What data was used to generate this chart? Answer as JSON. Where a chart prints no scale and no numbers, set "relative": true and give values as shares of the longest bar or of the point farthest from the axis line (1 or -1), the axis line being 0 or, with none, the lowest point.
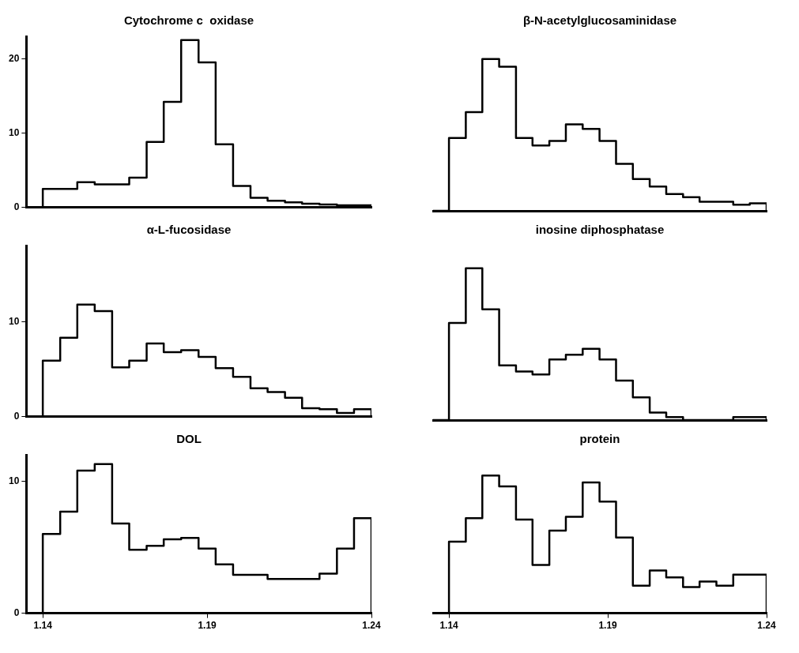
{
  "chart_data": [
    {
      "type": "step",
      "title": "Cytochrome c  oxidase",
      "color": "#000000",
      "x": [
        1.135,
        1.14,
        1.1453,
        1.1505,
        1.1558,
        1.1611,
        1.1663,
        1.1716,
        1.1768,
        1.1821,
        1.1874,
        1.1926,
        1.1979,
        1.2032,
        1.2084,
        1.2137,
        1.2189,
        1.2242,
        1.2295,
        1.2347,
        1.24
      ],
      "values": [
        0,
        2.5,
        2.5,
        3.4,
        3.1,
        3.1,
        4.0,
        8.8,
        14.2,
        22.5,
        19.5,
        8.5,
        2.9,
        1.3,
        0.9,
        0.7,
        0.5,
        0.4,
        0.3,
        0.3,
        0
      ],
      "xlim": [
        1.135,
        1.24
      ],
      "xticks": [
        1.14,
        1.19,
        1.24
      ],
      "ylim": [
        0,
        23
      ],
      "yticks": [
        0,
        10,
        20
      ],
      "tick_labels": "y"
    },
    {
      "type": "step",
      "title": "β-N-acetylglucosaminidase",
      "color": "#000000",
      "x": [
        1.135,
        1.14,
        1.1453,
        1.1505,
        1.1558,
        1.1611,
        1.1663,
        1.1716,
        1.1768,
        1.1821,
        1.1874,
        1.1926,
        1.1979,
        1.2032,
        1.2084,
        1.2137,
        1.2189,
        1.2242,
        1.2295,
        1.2347,
        1.24
      ],
      "values": [
        0,
        0.48,
        0.65,
        1,
        0.95,
        0.48,
        0.43,
        0.46,
        0.57,
        0.54,
        0.46,
        0.31,
        0.21,
        0.16,
        0.11,
        0.09,
        0.06,
        0.06,
        0.04,
        0.05,
        0
      ],
      "relative": true,
      "xlim": [
        1.135,
        1.24
      ],
      "xticks": [
        1.14,
        1.19,
        1.24
      ],
      "tick_labels": false
    },
    {
      "type": "step",
      "title": "α-L-fucosidase",
      "color": "#000000",
      "x": [
        1.135,
        1.14,
        1.1453,
        1.1505,
        1.1558,
        1.1611,
        1.1663,
        1.1716,
        1.1768,
        1.1821,
        1.1874,
        1.1926,
        1.1979,
        1.2032,
        1.2084,
        1.2137,
        1.2189,
        1.2242,
        1.2295,
        1.2347,
        1.24
      ],
      "values": [
        0,
        5.9,
        8.3,
        11.8,
        11.1,
        5.2,
        5.9,
        7.7,
        6.8,
        7.0,
        6.3,
        5.1,
        4.2,
        3.0,
        2.6,
        2.0,
        0.9,
        0.8,
        0.4,
        0.8,
        0
      ],
      "xlim": [
        1.135,
        1.24
      ],
      "xticks": [
        1.14,
        1.19,
        1.24
      ],
      "ylim": [
        0,
        18
      ],
      "yticks": [
        0,
        10
      ],
      "tick_labels": "y"
    },
    {
      "type": "step",
      "title": "inosine diphosphatase",
      "color": "#000000",
      "x": [
        1.135,
        1.14,
        1.1453,
        1.1505,
        1.1558,
        1.1611,
        1.1663,
        1.1716,
        1.1768,
        1.1821,
        1.1874,
        1.1926,
        1.1979,
        1.2032,
        1.2084,
        1.2137,
        1.2189,
        1.2242,
        1.2295,
        1.2347,
        1.24
      ],
      "values": [
        0,
        0.64,
        1,
        0.73,
        0.36,
        0.32,
        0.3,
        0.4,
        0.43,
        0.47,
        0.4,
        0.26,
        0.15,
        0.05,
        0.02,
        0,
        0,
        0,
        0.02,
        0.02,
        0
      ],
      "relative": true,
      "xlim": [
        1.135,
        1.24
      ],
      "xticks": [
        1.14,
        1.19,
        1.24
      ],
      "tick_labels": false
    },
    {
      "type": "step",
      "title": "DOL",
      "color": "#000000",
      "x": [
        1.135,
        1.14,
        1.1453,
        1.1505,
        1.1558,
        1.1611,
        1.1663,
        1.1716,
        1.1768,
        1.1821,
        1.1874,
        1.1926,
        1.1979,
        1.2032,
        1.2084,
        1.2137,
        1.2189,
        1.2242,
        1.2295,
        1.2347,
        1.24
      ],
      "values": [
        0,
        6.0,
        7.7,
        10.8,
        11.3,
        6.8,
        4.8,
        5.1,
        5.6,
        5.7,
        4.9,
        3.7,
        2.9,
        2.9,
        2.6,
        2.6,
        2.6,
        3.0,
        4.9,
        7.2,
        0
      ],
      "xlim": [
        1.135,
        1.24
      ],
      "xticks": [
        1.14,
        1.19,
        1.24
      ],
      "ylim": [
        0,
        12
      ],
      "yticks": [
        0,
        10
      ]
    },
    {
      "type": "step",
      "title": "protein",
      "color": "#000000",
      "x": [
        1.135,
        1.14,
        1.1453,
        1.1505,
        1.1558,
        1.1611,
        1.1663,
        1.1716,
        1.1768,
        1.1821,
        1.1874,
        1.1926,
        1.1979,
        1.2032,
        1.2084,
        1.2137,
        1.2189,
        1.2242,
        1.2295,
        1.2347,
        1.24
      ],
      "values": [
        0,
        0.52,
        0.69,
        1,
        0.92,
        0.68,
        0.35,
        0.6,
        0.7,
        0.95,
        0.81,
        0.55,
        0.2,
        0.31,
        0.26,
        0.19,
        0.23,
        0.2,
        0.28,
        0.28,
        0
      ],
      "relative": true,
      "xlim": [
        1.135,
        1.24
      ],
      "xticks": [
        1.14,
        1.19,
        1.24
      ],
      "tick_labels": "x"
    }
  ]
}
